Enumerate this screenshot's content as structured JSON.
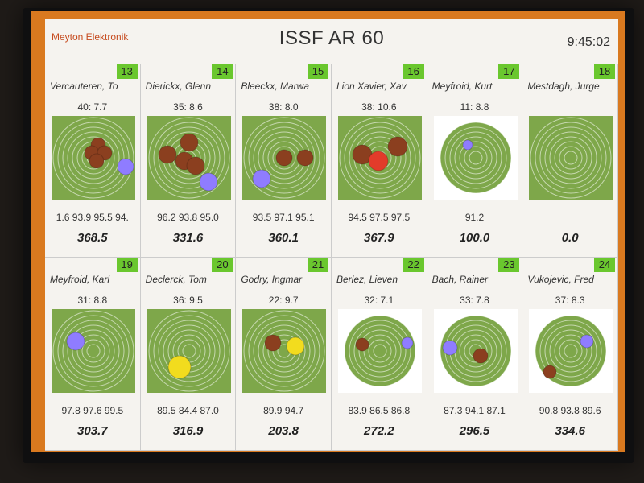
{
  "header": {
    "brand": "Meyton Elektronik",
    "title": "ISSF AR 60",
    "time": "9:45:02"
  },
  "colors": {
    "frame_orange": "#d9791f",
    "lane_badge": "#6ac72e",
    "target_green": "#7ea74a",
    "shot_brown": "#8b3f1f",
    "shot_purple": "#8f7cff",
    "shot_yellow": "#f2dc1e",
    "shot_red": "#e23b2a"
  },
  "shooters": [
    {
      "lane": "13",
      "name": "Vercauteren, To",
      "shot": "40:  7.7",
      "series": "1.6 93.9 95.5 94.",
      "total": "368.5"
    },
    {
      "lane": "14",
      "name": "Dierickx, Glenn",
      "shot": "35:  8.6",
      "series": "96.2 93.8 95.0",
      "total": "331.6"
    },
    {
      "lane": "15",
      "name": "Bleeckx, Marwa",
      "shot": "38:  8.0",
      "series": "93.5 97.1 95.1",
      "total": "360.1"
    },
    {
      "lane": "16",
      "name": "Lion Xavier, Xav",
      "shot": "38:  10.6",
      "series": "94.5 97.5 97.5",
      "total": "367.9"
    },
    {
      "lane": "17",
      "name": "Meyfroid, Kurt",
      "shot": "11:  8.8",
      "series": "91.2",
      "total": "100.0"
    },
    {
      "lane": "18",
      "name": "Mestdagh, Jurge",
      "shot": "",
      "series": "",
      "total": "0.0"
    },
    {
      "lane": "19",
      "name": "Meyfroid, Karl",
      "shot": "31:  8.8",
      "series": "97.8 97.6 99.5",
      "total": "303.7"
    },
    {
      "lane": "20",
      "name": "Declerck, Tom",
      "shot": "36:  9.5",
      "series": "89.5 84.4 87.0",
      "total": "316.9"
    },
    {
      "lane": "21",
      "name": "Godry, Ingmar",
      "shot": "22:  9.7",
      "series": "89.9 94.7",
      "total": "203.8"
    },
    {
      "lane": "22",
      "name": "Berlez, Lieven",
      "shot": "32:  7.1",
      "series": "83.9 86.5 86.8",
      "total": "272.2"
    },
    {
      "lane": "23",
      "name": "Bach, Rainer",
      "shot": "33:  7.8",
      "series": "87.3 94.1 87.1",
      "total": "296.5"
    },
    {
      "lane": "24",
      "name": "Vukojevic, Fred",
      "shot": "37:  8.3",
      "series": "90.8 93.8 89.6",
      "total": "334.6"
    }
  ]
}
